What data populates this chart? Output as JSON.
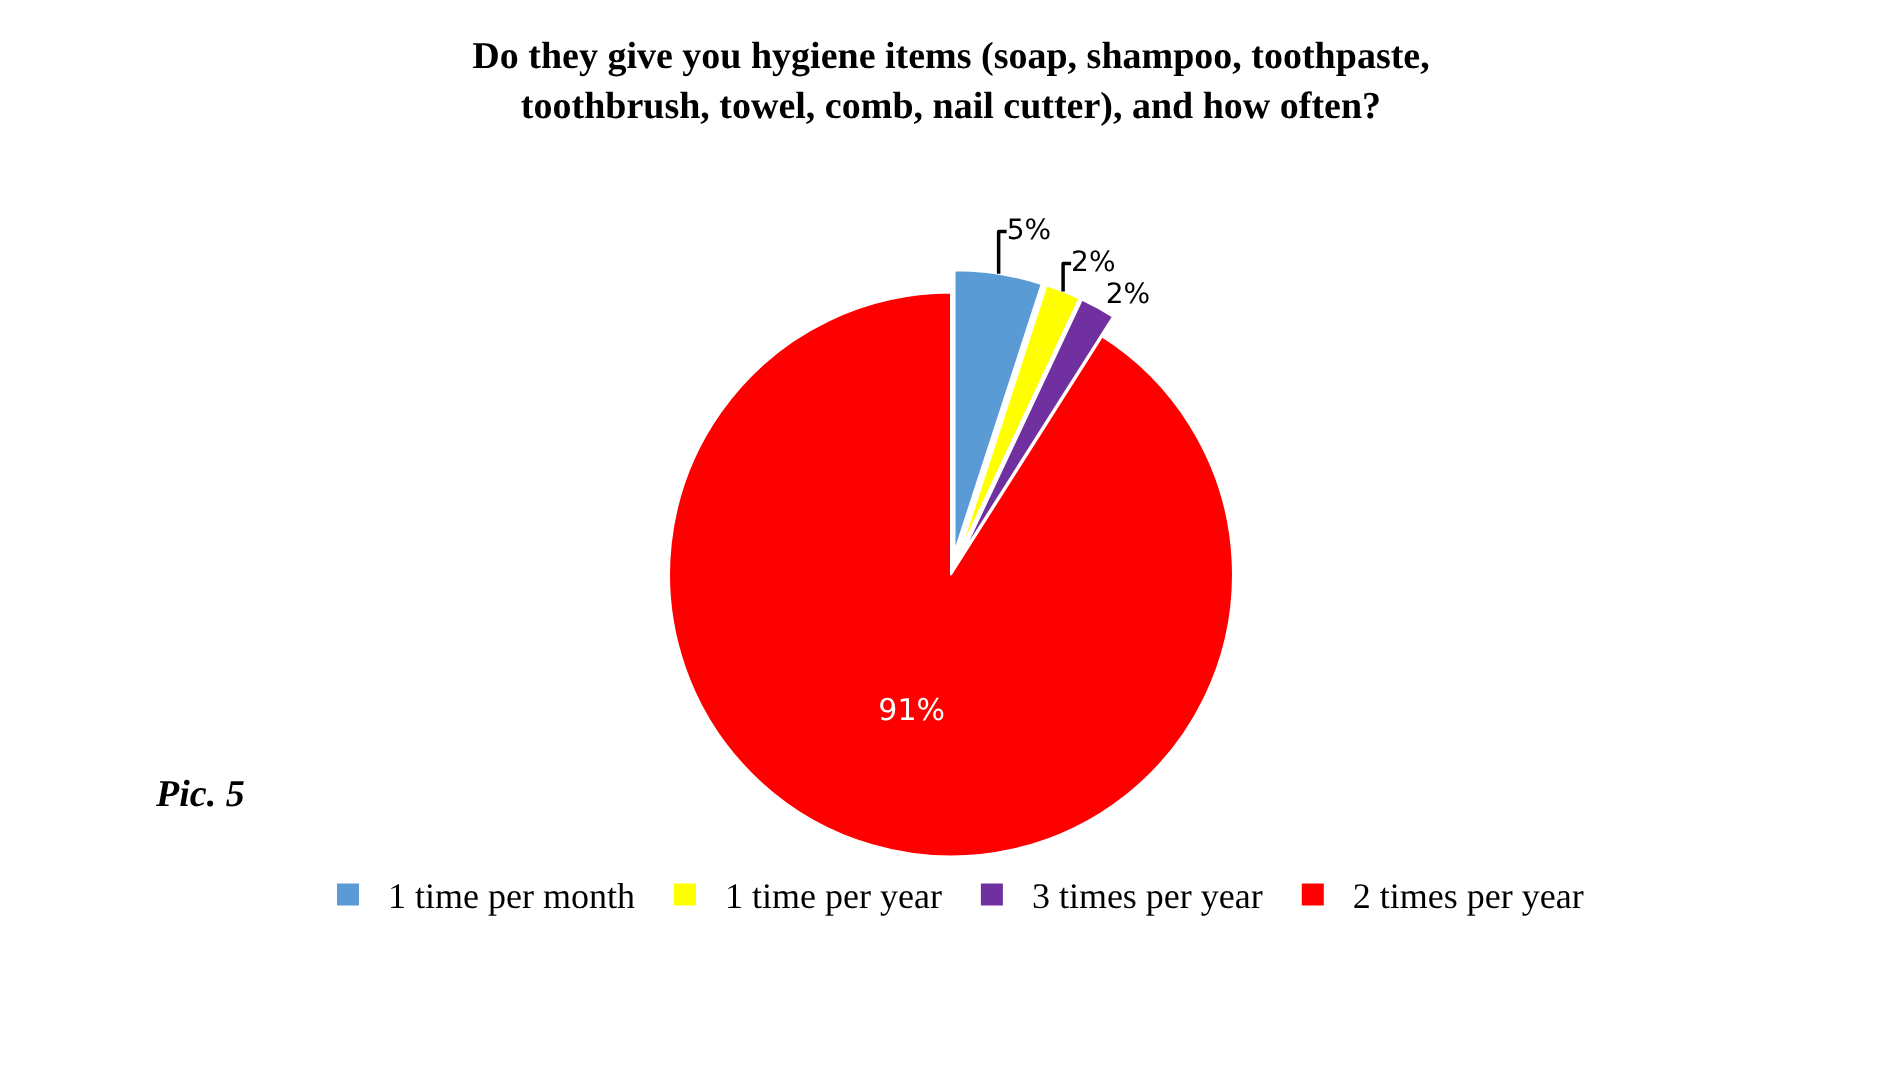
{
  "chart_data": {
    "type": "pie",
    "title": "Do they give you hygiene items (soap, shampoo, toothpaste, toothbrush, towel, comb, nail cutter), and how often?",
    "categories": [
      "1 time per month",
      "1 time per year",
      "3 times per year",
      "2 times per year"
    ],
    "values": [
      5,
      2,
      2,
      91
    ],
    "value_labels": [
      "5%",
      "2%",
      "2%",
      "91%"
    ],
    "colors": [
      "#5b9bd5",
      "#ffff00",
      "#7030a0",
      "#ff0000"
    ],
    "legend": "bottom",
    "annotations": [
      "Pic. 5"
    ]
  }
}
